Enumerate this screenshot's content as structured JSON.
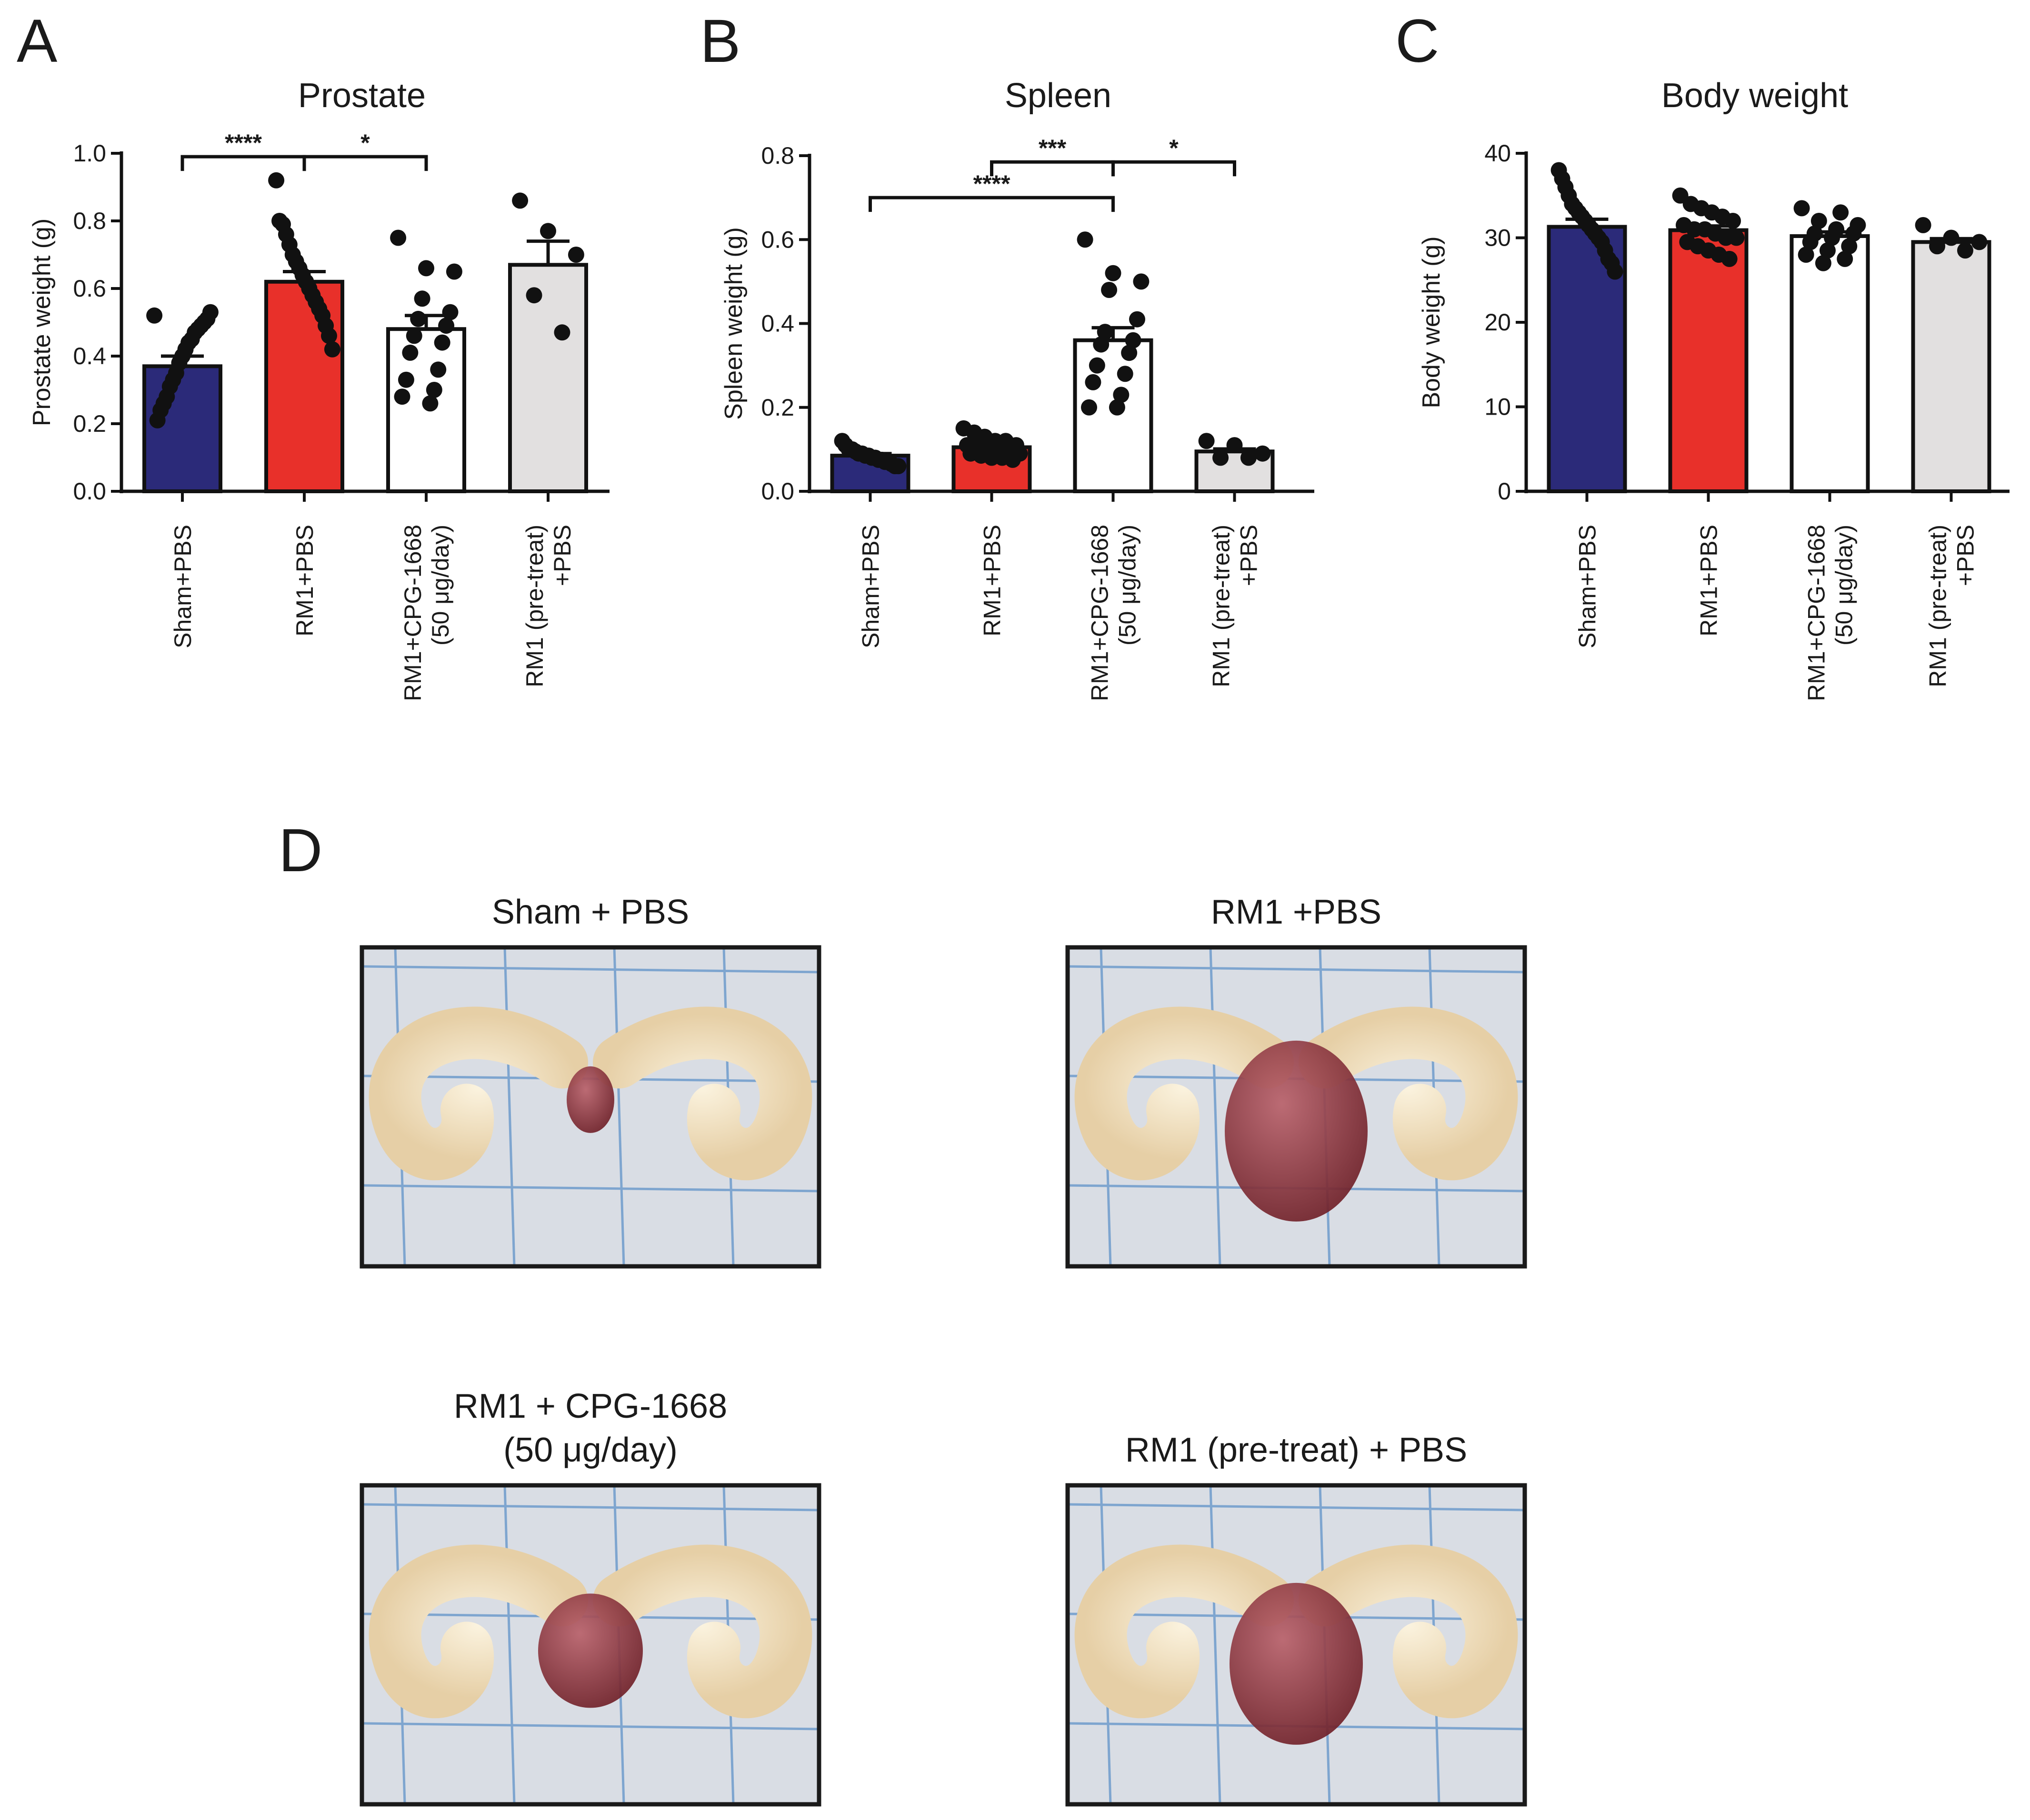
{
  "panel_d_letter": "D",
  "chart_data": [
    {
      "letter": "A",
      "type": "bar",
      "title": "Prostate",
      "ylabel": "Prostate weight (g)",
      "ylim": [
        0,
        1.0
      ],
      "yticks": [
        0,
        0.2,
        0.4,
        0.6,
        0.8,
        1.0
      ],
      "ytick_labels": [
        "0.0",
        "0.2",
        "0.4",
        "0.6",
        "0.8",
        "1.0"
      ],
      "categories": [
        [
          "Sham+PBS"
        ],
        [
          "RM1+PBS"
        ],
        [
          "RM1+CPG-1668",
          "(50 μg/day)"
        ],
        [
          "RM1 (pre-treat)",
          "+PBS"
        ]
      ],
      "values": [
        0.37,
        0.62,
        0.48,
        0.67
      ],
      "errors": [
        0.03,
        0.03,
        0.04,
        0.07
      ],
      "colors": [
        "#2b2a79",
        "#e8302a",
        "#ffffff",
        "#e2e0e0"
      ],
      "points": [
        [
          0.52,
          0.53,
          0.51,
          0.5,
          0.49,
          0.48,
          0.47,
          0.45,
          0.44,
          0.42,
          0.4,
          0.38,
          0.35,
          0.33,
          0.31,
          0.28,
          0.26,
          0.24,
          0.21
        ],
        [
          0.92,
          0.8,
          0.79,
          0.76,
          0.73,
          0.7,
          0.68,
          0.66,
          0.64,
          0.62,
          0.6,
          0.58,
          0.56,
          0.54,
          0.52,
          0.49,
          0.46,
          0.42
        ],
        [
          0.75,
          0.66,
          0.65,
          0.57,
          0.53,
          0.51,
          0.49,
          0.46,
          0.44,
          0.41,
          0.36,
          0.33,
          0.3,
          0.28,
          0.26
        ],
        [
          0.86,
          0.77,
          0.7,
          0.58,
          0.47
        ]
      ],
      "significance": [
        {
          "from": 0,
          "to": 1,
          "label": "****",
          "y": 0.99
        },
        {
          "from": 1,
          "to": 2,
          "label": "*",
          "y": 0.99
        }
      ]
    },
    {
      "letter": "B",
      "type": "bar",
      "title": "Spleen",
      "ylabel": "Spleen weight (g)",
      "ylim": [
        0,
        0.8
      ],
      "yticks": [
        0,
        0.2,
        0.4,
        0.6,
        0.8
      ],
      "ytick_labels": [
        "0.0",
        "0.2",
        "0.4",
        "0.6",
        "0.8"
      ],
      "categories": [
        [
          "Sham+PBS"
        ],
        [
          "RM1+PBS"
        ],
        [
          "RM1+CPG-1668",
          "(50 μg/day)"
        ],
        [
          "RM1 (pre-treat)",
          "+PBS"
        ]
      ],
      "values": [
        0.085,
        0.105,
        0.36,
        0.095
      ],
      "errors": [
        0.005,
        0.006,
        0.03,
        0.006
      ],
      "colors": [
        "#2b2a79",
        "#e8302a",
        "#ffffff",
        "#e2e0e0"
      ],
      "points": [
        [
          0.12,
          0.11,
          0.1,
          0.1,
          0.095,
          0.09,
          0.09,
          0.085,
          0.085,
          0.08,
          0.08,
          0.075,
          0.075,
          0.07,
          0.07,
          0.065,
          0.06,
          0.06
        ],
        [
          0.15,
          0.14,
          0.13,
          0.12,
          0.12,
          0.11,
          0.11,
          0.105,
          0.1,
          0.1,
          0.095,
          0.09,
          0.09,
          0.085,
          0.08,
          0.08,
          0.075
        ],
        [
          0.6,
          0.52,
          0.5,
          0.48,
          0.41,
          0.38,
          0.36,
          0.35,
          0.33,
          0.3,
          0.28,
          0.26,
          0.23,
          0.2,
          0.2
        ],
        [
          0.12,
          0.11,
          0.09,
          0.08,
          0.08
        ]
      ],
      "significance": [
        {
          "from": 1,
          "to": 2,
          "label": "***",
          "y": 0.785
        },
        {
          "from": 2,
          "to": 3,
          "label": "*",
          "y": 0.785
        },
        {
          "from": 0,
          "to": 2,
          "label": "****",
          "y": 0.7
        }
      ]
    },
    {
      "letter": "C",
      "type": "bar",
      "title": "Body weight",
      "ylabel": "Body weight (g)",
      "ylim": [
        0,
        40
      ],
      "yticks": [
        0,
        10,
        20,
        30,
        40
      ],
      "ytick_labels": [
        "0",
        "10",
        "20",
        "30",
        "40"
      ],
      "categories": [
        [
          "Sham+PBS"
        ],
        [
          "RM1+PBS"
        ],
        [
          "RM1+CPG-1668",
          "(50 μg/day)"
        ],
        [
          "RM1 (pre-treat)",
          "+PBS"
        ]
      ],
      "values": [
        31.3,
        30.9,
        30.2,
        29.5
      ],
      "errors": [
        0.9,
        0.5,
        0.5,
        0.4
      ],
      "colors": [
        "#2b2a79",
        "#e8302a",
        "#ffffff",
        "#e2e0e0"
      ],
      "points": [
        [
          38,
          37,
          36,
          35,
          34,
          33.5,
          33,
          32.5,
          32,
          31.5,
          31,
          30.5,
          30,
          29.5,
          28.5,
          27.5,
          27,
          26
        ],
        [
          35,
          34,
          33.5,
          33,
          32.5,
          32,
          31.5,
          31,
          31,
          30.5,
          30,
          30,
          29.5,
          29,
          28.5,
          28,
          27.5
        ],
        [
          33.5,
          33,
          32,
          31.5,
          31,
          30.5,
          30.5,
          30,
          29.5,
          29,
          28.5,
          28,
          27.5,
          27
        ],
        [
          31.5,
          30,
          29.5,
          29,
          28.5
        ]
      ],
      "significance": []
    }
  ],
  "photos": [
    {
      "title_lines": [
        "Sham + PBS"
      ],
      "variant": "small"
    },
    {
      "title_lines": [
        "RM1 +PBS"
      ],
      "variant": "large"
    },
    {
      "title_lines": [
        "RM1 + CPG-1668",
        "(50 μg/day)"
      ],
      "variant": "medium"
    },
    {
      "title_lines": [
        "RM1 (pre-treat) + PBS"
      ],
      "variant": "medium-large"
    }
  ]
}
